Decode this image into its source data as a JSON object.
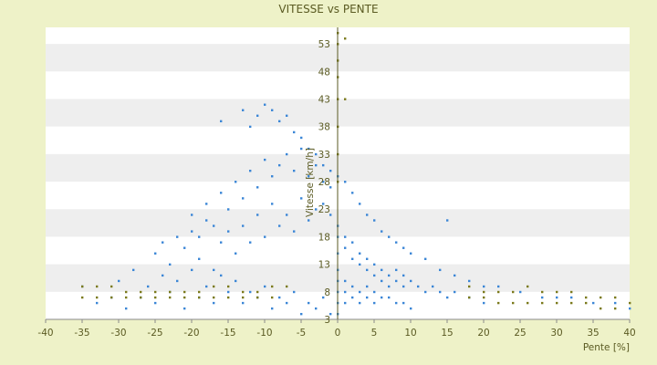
{
  "chart_data": {
    "type": "scatter",
    "title": "VITESSE vs PENTE",
    "xlabel": "Pente [%]",
    "ylabel": "Vitesse [km/h]",
    "xlim": [
      -40,
      40
    ],
    "ylim": [
      3,
      56
    ],
    "x_ticks": [
      -40,
      -35,
      -30,
      -25,
      -20,
      -15,
      -10,
      -5,
      0,
      5,
      10,
      15,
      20,
      25,
      30,
      35,
      40
    ],
    "y_ticks": [
      3,
      8,
      13,
      18,
      23,
      28,
      33,
      38,
      43,
      48,
      53
    ],
    "grid": "horizontal alternating bands",
    "legend": "none",
    "series_colors": {
      "main": "#3b86d6",
      "secondary": "#7b7a1c"
    },
    "series": [
      {
        "description_color": "main",
        "points_summary": "dense cloud: peak near x=0 (y up to ~28-30), descending symmetrically with slope magnitude; sparse to ~40 km/h between -15 and -5",
        "points": [
          [
            -16,
            39
          ],
          [
            -13,
            41
          ],
          [
            -12,
            38
          ],
          [
            -11,
            40
          ],
          [
            -10,
            42
          ],
          [
            -9,
            41
          ],
          [
            -8,
            39
          ],
          [
            -7,
            40
          ],
          [
            -6,
            37
          ],
          [
            -5,
            36
          ],
          [
            -4,
            34
          ],
          [
            -3,
            33
          ],
          [
            -2,
            31
          ],
          [
            -1,
            30
          ],
          [
            0,
            29
          ],
          [
            1,
            28
          ],
          [
            2,
            26
          ],
          [
            3,
            24
          ],
          [
            4,
            22
          ],
          [
            5,
            21
          ],
          [
            6,
            19
          ],
          [
            7,
            18
          ],
          [
            8,
            17
          ],
          [
            9,
            16
          ],
          [
            10,
            15
          ],
          [
            12,
            14
          ],
          [
            14,
            12
          ],
          [
            15,
            21
          ],
          [
            16,
            11
          ],
          [
            18,
            10
          ],
          [
            20,
            9
          ],
          [
            22,
            9
          ],
          [
            25,
            8
          ],
          [
            28,
            7
          ],
          [
            30,
            7
          ],
          [
            32,
            7
          ],
          [
            35,
            6
          ],
          [
            38,
            6
          ],
          [
            40,
            5
          ],
          [
            -20,
            22
          ],
          [
            -19,
            18
          ],
          [
            -18,
            24
          ],
          [
            -17,
            20
          ],
          [
            -16,
            26
          ],
          [
            -15,
            23
          ],
          [
            -14,
            28
          ],
          [
            -13,
            25
          ],
          [
            -12,
            30
          ],
          [
            -11,
            27
          ],
          [
            -10,
            32
          ],
          [
            -9,
            29
          ],
          [
            -8,
            31
          ],
          [
            -7,
            33
          ],
          [
            -6,
            30
          ],
          [
            -5,
            34
          ],
          [
            -4,
            29
          ],
          [
            -3,
            31
          ],
          [
            -2,
            28
          ],
          [
            -1,
            27
          ],
          [
            -25,
            15
          ],
          [
            -24,
            17
          ],
          [
            -23,
            13
          ],
          [
            -22,
            18
          ],
          [
            -21,
            16
          ],
          [
            -20,
            19
          ],
          [
            -19,
            14
          ],
          [
            -18,
            21
          ],
          [
            -17,
            12
          ],
          [
            -16,
            17
          ],
          [
            -15,
            19
          ],
          [
            -14,
            15
          ],
          [
            -13,
            20
          ],
          [
            -12,
            17
          ],
          [
            -11,
            22
          ],
          [
            -10,
            18
          ],
          [
            -9,
            24
          ],
          [
            -8,
            20
          ],
          [
            -7,
            22
          ],
          [
            -6,
            19
          ],
          [
            -5,
            25
          ],
          [
            -4,
            21
          ],
          [
            -3,
            23
          ],
          [
            -2,
            24
          ],
          [
            -1,
            22
          ],
          [
            -30,
            10
          ],
          [
            -28,
            12
          ],
          [
            -26,
            9
          ],
          [
            -24,
            11
          ],
          [
            -22,
            10
          ],
          [
            -20,
            12
          ],
          [
            -18,
            9
          ],
          [
            -16,
            11
          ],
          [
            -14,
            10
          ],
          [
            -12,
            8
          ],
          [
            -10,
            9
          ],
          [
            -8,
            7
          ],
          [
            -6,
            8
          ],
          [
            -4,
            6
          ],
          [
            -2,
            7
          ],
          [
            1,
            18
          ],
          [
            1,
            16
          ],
          [
            2,
            17
          ],
          [
            2,
            14
          ],
          [
            3,
            15
          ],
          [
            3,
            13
          ],
          [
            4,
            14
          ],
          [
            4,
            12
          ],
          [
            5,
            13
          ],
          [
            5,
            11
          ],
          [
            6,
            12
          ],
          [
            6,
            10
          ],
          [
            7,
            11
          ],
          [
            7,
            9
          ],
          [
            8,
            10
          ],
          [
            8,
            12
          ],
          [
            9,
            9
          ],
          [
            9,
            11
          ],
          [
            10,
            10
          ],
          [
            11,
            9
          ],
          [
            12,
            8
          ],
          [
            13,
            9
          ],
          [
            14,
            8
          ],
          [
            15,
            7
          ],
          [
            16,
            8
          ],
          [
            18,
            7
          ],
          [
            20,
            6
          ],
          [
            0,
            20
          ],
          [
            0,
            18
          ],
          [
            0,
            15
          ],
          [
            0,
            12
          ],
          [
            0,
            10
          ],
          [
            0,
            8
          ],
          [
            0,
            6
          ],
          [
            0,
            4
          ],
          [
            1,
            10
          ],
          [
            1,
            8
          ],
          [
            1,
            6
          ],
          [
            2,
            9
          ],
          [
            2,
            7
          ],
          [
            3,
            8
          ],
          [
            3,
            6
          ],
          [
            4,
            9
          ],
          [
            4,
            7
          ],
          [
            5,
            8
          ],
          [
            5,
            6
          ],
          [
            6,
            7
          ],
          [
            7,
            7
          ],
          [
            8,
            6
          ],
          [
            9,
            6
          ],
          [
            10,
            5
          ],
          [
            -35,
            9
          ],
          [
            -33,
            6
          ],
          [
            -31,
            7
          ],
          [
            -29,
            5
          ],
          [
            -27,
            7
          ],
          [
            -25,
            6
          ],
          [
            -23,
            8
          ],
          [
            -21,
            5
          ],
          [
            -19,
            7
          ],
          [
            -17,
            6
          ],
          [
            -15,
            8
          ],
          [
            -13,
            6
          ],
          [
            -11,
            7
          ],
          [
            -9,
            5
          ],
          [
            -7,
            6
          ],
          [
            -5,
            4
          ],
          [
            -3,
            5
          ],
          [
            -1,
            4
          ]
        ]
      },
      {
        "description_color": "secondary",
        "points_summary": "discrete bands near low speeds from about -35 to 40, plus vertical cluster at x=0 and x=1 up to 55",
        "points": [
          [
            -35,
            9
          ],
          [
            -33,
            9
          ],
          [
            -31,
            9
          ],
          [
            -29,
            8
          ],
          [
            -27,
            8
          ],
          [
            -25,
            8
          ],
          [
            -23,
            8
          ],
          [
            -21,
            8
          ],
          [
            -19,
            8
          ],
          [
            -17,
            9
          ],
          [
            -15,
            9
          ],
          [
            -13,
            8
          ],
          [
            -11,
            8
          ],
          [
            -9,
            9
          ],
          [
            -7,
            9
          ],
          [
            -35,
            7
          ],
          [
            -33,
            7
          ],
          [
            -31,
            7
          ],
          [
            -29,
            7
          ],
          [
            -27,
            7
          ],
          [
            -25,
            7
          ],
          [
            -23,
            7
          ],
          [
            -21,
            7
          ],
          [
            -19,
            7
          ],
          [
            -17,
            7
          ],
          [
            -15,
            7
          ],
          [
            -13,
            7
          ],
          [
            -11,
            7
          ],
          [
            -9,
            7
          ],
          [
            0,
            55
          ],
          [
            0,
            53
          ],
          [
            0,
            50
          ],
          [
            0,
            47
          ],
          [
            0,
            43
          ],
          [
            0,
            38
          ],
          [
            0,
            33
          ],
          [
            0,
            28
          ],
          [
            1,
            54
          ],
          [
            1,
            43
          ],
          [
            18,
            9
          ],
          [
            20,
            8
          ],
          [
            22,
            8
          ],
          [
            24,
            8
          ],
          [
            26,
            9
          ],
          [
            28,
            8
          ],
          [
            30,
            8
          ],
          [
            32,
            8
          ],
          [
            34,
            7
          ],
          [
            36,
            7
          ],
          [
            38,
            7
          ],
          [
            40,
            6
          ],
          [
            18,
            7
          ],
          [
            20,
            7
          ],
          [
            22,
            6
          ],
          [
            24,
            6
          ],
          [
            26,
            6
          ],
          [
            28,
            6
          ],
          [
            30,
            6
          ],
          [
            32,
            6
          ],
          [
            34,
            6
          ],
          [
            36,
            5
          ],
          [
            38,
            5
          ]
        ]
      }
    ]
  }
}
